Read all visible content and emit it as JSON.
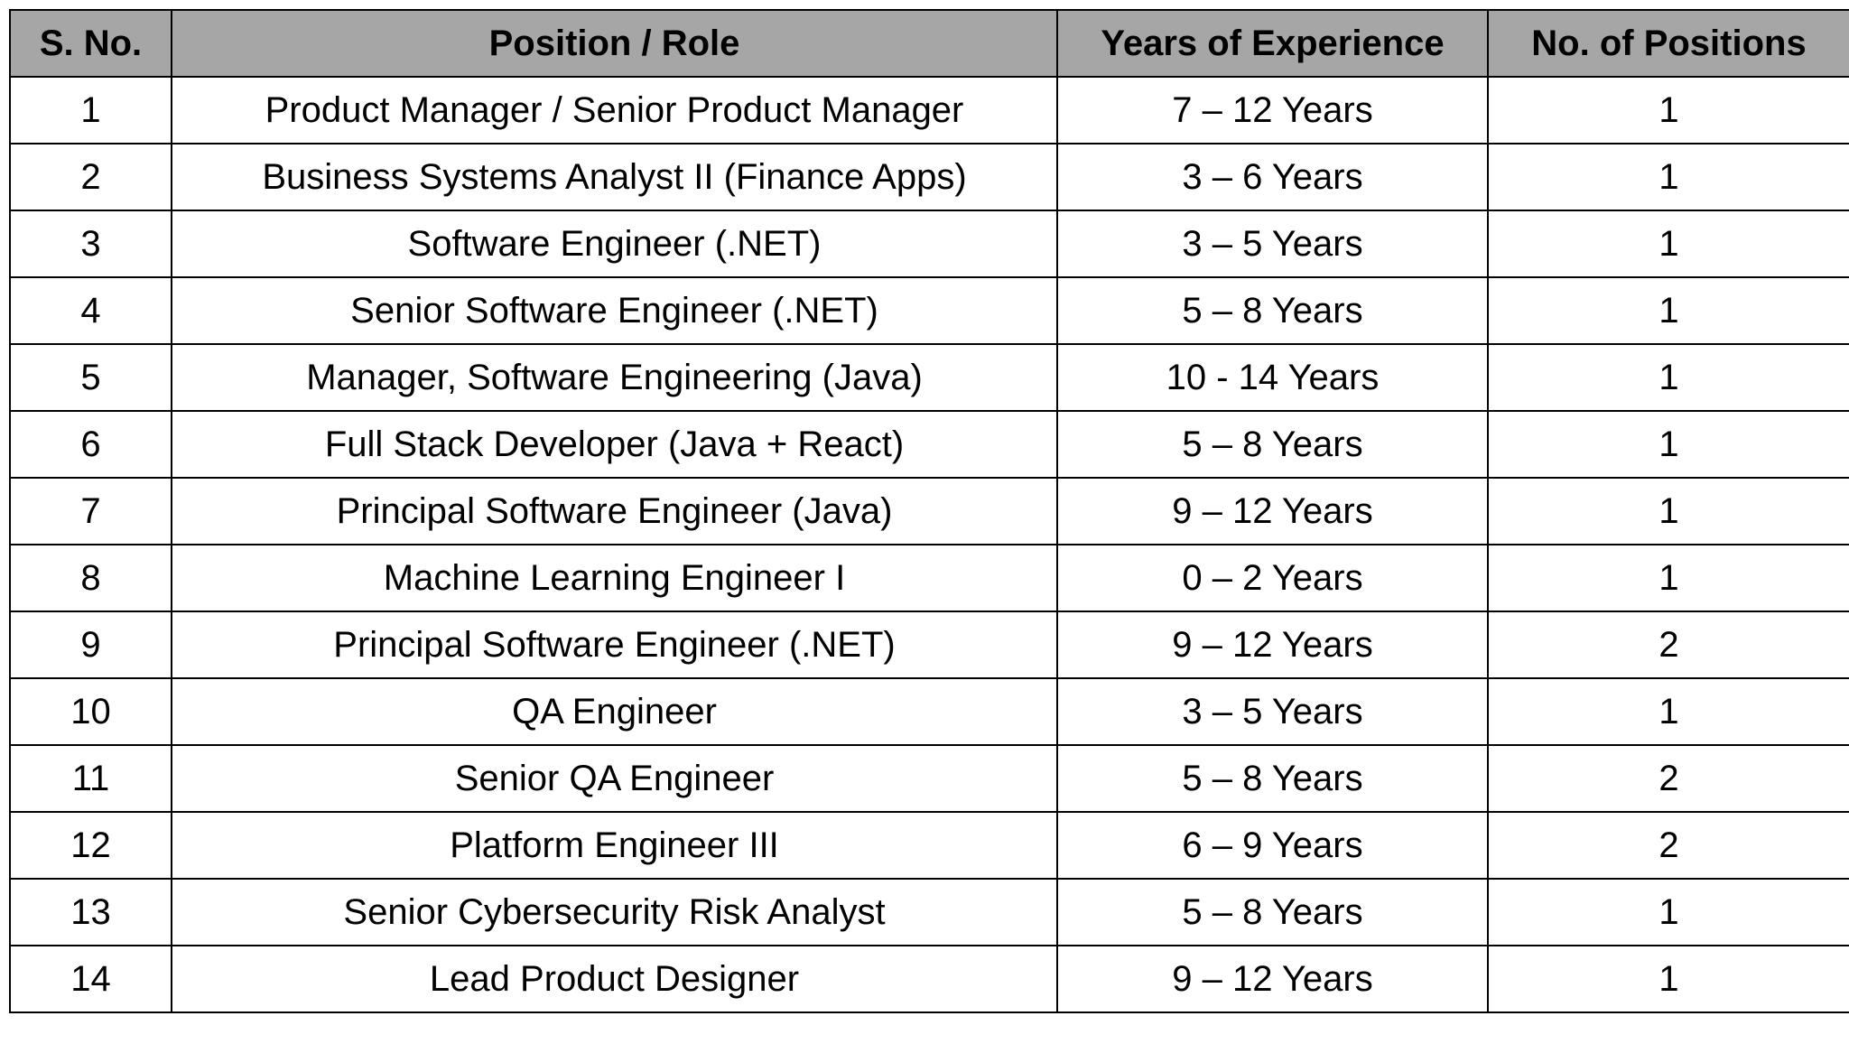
{
  "table": {
    "header": [
      "S. No.",
      "Position / Role",
      "Years of Experience",
      "No. of Positions"
    ],
    "rows": [
      [
        1,
        "Product Manager / Senior Product Manager",
        "7 – 12 Years",
        1
      ],
      [
        2,
        "Business Systems Analyst II (Finance Apps)",
        "3 – 6 Years",
        1
      ],
      [
        3,
        "Software Engineer (.NET)",
        "3 – 5 Years",
        1
      ],
      [
        4,
        "Senior Software Engineer (.NET)",
        "5 – 8 Years",
        1
      ],
      [
        5,
        "Manager, Software Engineering (Java)",
        "10 - 14 Years",
        1
      ],
      [
        6,
        "Full Stack Developer (Java + React)",
        "5 – 8 Years",
        1
      ],
      [
        7,
        "Principal Software Engineer (Java)",
        "9 – 12 Years",
        1
      ],
      [
        8,
        "Machine Learning Engineer I",
        "0 – 2 Years",
        1
      ],
      [
        9,
        "Principal Software Engineer (.NET)",
        "9 – 12 Years",
        2
      ],
      [
        10,
        "QA Engineer",
        "3 – 5 Years",
        1
      ],
      [
        11,
        "Senior QA Engineer",
        "5 – 8 Years",
        2
      ],
      [
        12,
        "Platform Engineer III",
        "6 – 9 Years",
        2
      ],
      [
        13,
        "Senior Cybersecurity Risk Analyst",
        "5 – 8 Years",
        1
      ],
      [
        14,
        "Lead Product Designer",
        "9 – 12 Years",
        1
      ]
    ]
  }
}
